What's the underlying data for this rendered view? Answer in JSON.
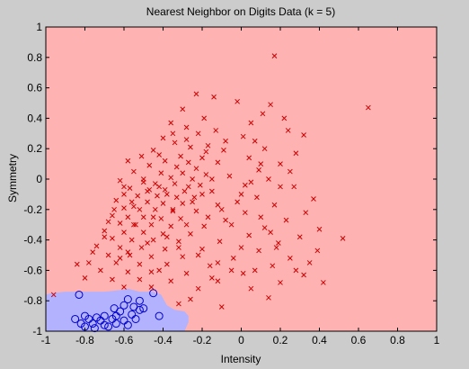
{
  "chart_data": {
    "type": "scatter",
    "title": "Nearest Neighbor on Digits Data (k = 5)",
    "xlabel": "Intensity",
    "ylabel": "Symmetry",
    "xlim": [
      -1,
      1
    ],
    "ylim": [
      -1,
      1
    ],
    "xticks": [
      -1,
      -0.8,
      -0.6,
      -0.4,
      -0.2,
      0,
      0.2,
      0.4,
      0.6,
      0.8,
      1
    ],
    "yticks": [
      -1,
      -0.8,
      -0.6,
      -0.4,
      -0.2,
      0,
      0.2,
      0.4,
      0.6,
      0.8,
      1
    ],
    "xtick_labels": [
      "-1",
      "-0.8",
      "-0.6",
      "-0.4",
      "-0.2",
      "0",
      "0.2",
      "0.4",
      "0.6",
      "0.8",
      "1"
    ],
    "ytick_labels": [
      "-1",
      "-0.8",
      "-0.6",
      "-0.4",
      "-0.2",
      "0",
      "0.2",
      "0.4",
      "0.6",
      "0.8",
      "1"
    ],
    "grid": false,
    "colors": {
      "figure_bg": "#cccccc",
      "region_x": "#ffb2b2",
      "region_o": "#b2b2ff",
      "marker_x": "#cc0000",
      "marker_o": "#0000cc"
    },
    "decision_region_o": [
      [
        -1.0,
        -0.76
      ],
      [
        -0.97,
        -0.75
      ],
      [
        -0.9,
        -0.74
      ],
      [
        -0.8,
        -0.74
      ],
      [
        -0.7,
        -0.74
      ],
      [
        -0.62,
        -0.73
      ],
      [
        -0.58,
        -0.72
      ],
      [
        -0.52,
        -0.74
      ],
      [
        -0.45,
        -0.74
      ],
      [
        -0.41,
        -0.76
      ],
      [
        -0.38,
        -0.83
      ],
      [
        -0.34,
        -0.86
      ],
      [
        -0.29,
        -0.87
      ],
      [
        -0.27,
        -0.9
      ],
      [
        -0.27,
        -0.94
      ],
      [
        -0.29,
        -1.0
      ],
      [
        -1.0,
        -1.0
      ]
    ],
    "series": [
      {
        "marker": "x",
        "points": [
          [
            0.17,
            0.81
          ],
          [
            0.65,
            0.47
          ],
          [
            -0.23,
            0.56
          ],
          [
            -0.14,
            0.54
          ],
          [
            -0.02,
            0.51
          ],
          [
            0.15,
            0.49
          ],
          [
            -0.3,
            0.46
          ],
          [
            0.11,
            0.43
          ],
          [
            -0.19,
            0.4
          ],
          [
            0.22,
            0.4
          ],
          [
            -0.36,
            0.37
          ],
          [
            0.05,
            0.37
          ],
          [
            -0.28,
            0.34
          ],
          [
            -0.13,
            0.32
          ],
          [
            0.24,
            0.32
          ],
          [
            -0.22,
            0.3
          ],
          [
            0.01,
            0.28
          ],
          [
            -0.4,
            0.27
          ],
          [
            0.07,
            0.25
          ],
          [
            0.32,
            0.29
          ],
          [
            -0.34,
            0.24
          ],
          [
            -0.17,
            0.22
          ],
          [
            -0.26,
            0.21
          ],
          [
            0.12,
            0.2
          ],
          [
            -0.45,
            0.19
          ],
          [
            -0.09,
            0.19
          ],
          [
            0.28,
            0.17
          ],
          [
            -0.51,
            0.15
          ],
          [
            -0.31,
            0.15
          ],
          [
            -0.2,
            0.14
          ],
          [
            0.04,
            0.14
          ],
          [
            -0.58,
            0.12
          ],
          [
            -0.39,
            0.12
          ],
          [
            -0.27,
            0.11
          ],
          [
            -0.12,
            0.11
          ],
          [
            0.2,
            0.1
          ],
          [
            -0.47,
            0.09
          ],
          [
            -0.33,
            0.08
          ],
          [
            -0.23,
            0.07
          ],
          [
            0.09,
            0.06
          ],
          [
            -0.55,
            0.05
          ],
          [
            -0.41,
            0.04
          ],
          [
            -0.3,
            0.04
          ],
          [
            -0.18,
            0.03
          ],
          [
            -0.06,
            0.02
          ],
          [
            -0.36,
            0.01
          ],
          [
            -0.25,
            0.0
          ],
          [
            0.14,
            0.0
          ],
          [
            -0.62,
            -0.01
          ],
          [
            -0.5,
            -0.02
          ],
          [
            -0.44,
            -0.03
          ],
          [
            -0.34,
            -0.03
          ],
          [
            -0.21,
            -0.04
          ],
          [
            0.02,
            -0.04
          ],
          [
            0.27,
            -0.05
          ],
          [
            -0.57,
            -0.06
          ],
          [
            -0.47,
            -0.07
          ],
          [
            -0.39,
            -0.07
          ],
          [
            -0.29,
            -0.08
          ],
          [
            -0.15,
            -0.08
          ],
          [
            -0.6,
            -0.1
          ],
          [
            -0.53,
            -0.11
          ],
          [
            -0.43,
            -0.11
          ],
          [
            -0.33,
            -0.12
          ],
          [
            -0.24,
            -0.12
          ],
          [
            0.08,
            -0.12
          ],
          [
            0.37,
            -0.13
          ],
          [
            -0.64,
            -0.14
          ],
          [
            -0.56,
            -0.15
          ],
          [
            -0.48,
            -0.15
          ],
          [
            -0.4,
            -0.16
          ],
          [
            -0.3,
            -0.16
          ],
          [
            -0.12,
            -0.17
          ],
          [
            0.17,
            -0.17
          ],
          [
            -0.6,
            -0.19
          ],
          [
            -0.52,
            -0.2
          ],
          [
            -0.44,
            -0.2
          ],
          [
            -0.35,
            -0.21
          ],
          [
            -0.23,
            -0.21
          ],
          [
            0.02,
            -0.22
          ],
          [
            0.33,
            -0.22
          ],
          [
            -0.66,
            -0.24
          ],
          [
            -0.58,
            -0.25
          ],
          [
            -0.5,
            -0.25
          ],
          [
            -0.41,
            -0.26
          ],
          [
            -0.31,
            -0.26
          ],
          [
            -0.08,
            -0.27
          ],
          [
            0.23,
            -0.27
          ],
          [
            -0.62,
            -0.29
          ],
          [
            -0.54,
            -0.3
          ],
          [
            -0.46,
            -0.3
          ],
          [
            -0.36,
            -0.31
          ],
          [
            -0.19,
            -0.31
          ],
          [
            0.12,
            -0.32
          ],
          [
            0.4,
            -0.33
          ],
          [
            -0.7,
            -0.34
          ],
          [
            -0.6,
            -0.35
          ],
          [
            -0.5,
            -0.35
          ],
          [
            -0.4,
            -0.36
          ],
          [
            -0.26,
            -0.36
          ],
          [
            0.04,
            -0.37
          ],
          [
            0.3,
            -0.38
          ],
          [
            -0.66,
            -0.39
          ],
          [
            -0.56,
            -0.4
          ],
          [
            -0.45,
            -0.4
          ],
          [
            -0.32,
            -0.41
          ],
          [
            -0.11,
            -0.41
          ],
          [
            0.19,
            -0.42
          ],
          [
            0.52,
            -0.39
          ],
          [
            -0.74,
            -0.44
          ],
          [
            -0.62,
            -0.45
          ],
          [
            -0.51,
            -0.45
          ],
          [
            -0.39,
            -0.46
          ],
          [
            -0.2,
            -0.46
          ],
          [
            0.09,
            -0.47
          ],
          [
            0.39,
            -0.47
          ],
          [
            -0.68,
            -0.5
          ],
          [
            -0.57,
            -0.5
          ],
          [
            -0.46,
            -0.51
          ],
          [
            -0.3,
            -0.51
          ],
          [
            -0.04,
            -0.52
          ],
          [
            0.25,
            -0.52
          ],
          [
            -0.78,
            -0.55
          ],
          [
            -0.64,
            -0.55
          ],
          [
            -0.52,
            -0.56
          ],
          [
            -0.38,
            -0.56
          ],
          [
            -0.16,
            -0.57
          ],
          [
            0.16,
            -0.57
          ],
          [
            -0.72,
            -0.6
          ],
          [
            -0.58,
            -0.61
          ],
          [
            -0.46,
            -0.61
          ],
          [
            -0.28,
            -0.62
          ],
          [
            0.01,
            -0.62
          ],
          [
            0.32,
            -0.63
          ],
          [
            -0.8,
            -0.65
          ],
          [
            -0.66,
            -0.66
          ],
          [
            -0.52,
            -0.66
          ],
          [
            -0.36,
            -0.67
          ],
          [
            -0.12,
            -0.67
          ],
          [
            0.2,
            -0.68
          ],
          [
            -0.6,
            -0.71
          ],
          [
            -0.46,
            -0.71
          ],
          [
            -0.22,
            -0.72
          ],
          [
            0.05,
            -0.72
          ],
          [
            0.42,
            -0.68
          ],
          [
            -0.84,
            -0.56
          ],
          [
            -0.96,
            -0.76
          ],
          [
            -0.26,
            -0.79
          ],
          [
            -0.1,
            -0.84
          ],
          [
            0.14,
            -0.78
          ],
          [
            -0.32,
            -0.82
          ],
          [
            -0.55,
            -0.3
          ],
          [
            -0.45,
            -0.25
          ],
          [
            -0.35,
            -0.2
          ],
          [
            -0.25,
            -0.15
          ],
          [
            -0.42,
            -0.05
          ],
          [
            -0.2,
            -0.1
          ],
          [
            -0.15,
            0.0
          ],
          [
            -0.1,
            -0.2
          ],
          [
            -0.05,
            -0.3
          ],
          [
            0.0,
            -0.1
          ],
          [
            0.1,
            -0.25
          ],
          [
            0.15,
            -0.35
          ],
          [
            0.2,
            -0.05
          ],
          [
            0.25,
            0.05
          ],
          [
            -0.28,
            -0.3
          ],
          [
            -0.38,
            -0.38
          ],
          [
            -0.48,
            -0.42
          ],
          [
            -0.58,
            -0.48
          ],
          [
            -0.68,
            -0.28
          ],
          [
            -0.5,
            0.0
          ],
          [
            -0.6,
            -0.05
          ],
          [
            -0.55,
            -0.18
          ],
          [
            -0.65,
            -0.2
          ],
          [
            -0.42,
            0.16
          ],
          [
            -0.35,
            0.3
          ],
          [
            -0.28,
            0.26
          ],
          [
            -0.18,
            0.18
          ],
          [
            -0.08,
            0.25
          ],
          [
            -0.32,
            -0.45
          ],
          [
            -0.22,
            -0.5
          ],
          [
            -0.12,
            -0.55
          ],
          [
            0.0,
            -0.45
          ],
          [
            0.28,
            -0.6
          ],
          [
            -0.42,
            -0.6
          ],
          [
            -0.7,
            -0.38
          ],
          [
            -0.76,
            -0.48
          ],
          [
            -0.62,
            -0.52
          ],
          [
            -0.48,
            -0.08
          ],
          [
            -0.38,
            -0.1
          ],
          [
            -0.27,
            -0.05
          ],
          [
            -0.17,
            -0.25
          ],
          [
            0.07,
            -0.6
          ],
          [
            0.35,
            -0.55
          ],
          [
            -0.15,
            -0.65
          ],
          [
            -0.05,
            -0.6
          ],
          [
            0.18,
            -0.45
          ],
          [
            0.1,
            0.1
          ],
          [
            0.05,
            -0.02
          ],
          [
            -0.02,
            -0.15
          ]
        ]
      },
      {
        "marker": "o",
        "points": [
          [
            -0.83,
            -0.76
          ],
          [
            -0.45,
            -0.75
          ],
          [
            -0.58,
            -0.79
          ],
          [
            -0.52,
            -0.8
          ],
          [
            -0.6,
            -0.83
          ],
          [
            -0.55,
            -0.84
          ],
          [
            -0.5,
            -0.85
          ],
          [
            -0.65,
            -0.85
          ],
          [
            -0.62,
            -0.87
          ],
          [
            -0.7,
            -0.9
          ],
          [
            -0.8,
            -0.9
          ],
          [
            -0.74,
            -0.91
          ],
          [
            -0.64,
            -0.9
          ],
          [
            -0.56,
            -0.89
          ],
          [
            -0.42,
            -0.9
          ],
          [
            -0.85,
            -0.92
          ],
          [
            -0.78,
            -0.92
          ],
          [
            -0.72,
            -0.93
          ],
          [
            -0.66,
            -0.92
          ],
          [
            -0.6,
            -0.93
          ],
          [
            -0.54,
            -0.92
          ],
          [
            -0.82,
            -0.95
          ],
          [
            -0.76,
            -0.95
          ],
          [
            -0.7,
            -0.96
          ],
          [
            -0.64,
            -0.95
          ],
          [
            -0.58,
            -0.96
          ],
          [
            -0.8,
            -0.97
          ],
          [
            -0.75,
            -0.98
          ],
          [
            -0.68,
            -0.97
          ],
          [
            -0.52,
            -0.86
          ]
        ]
      }
    ]
  }
}
